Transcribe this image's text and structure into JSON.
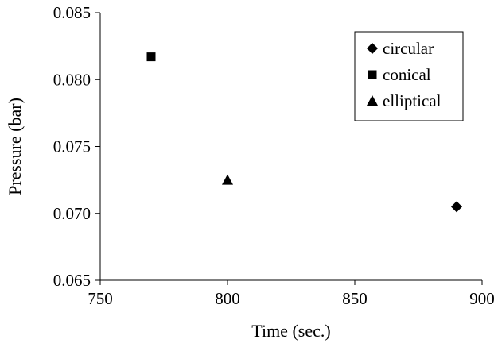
{
  "chart_data": {
    "type": "scatter",
    "title": "",
    "xlabel": "Time (sec.)",
    "ylabel": "Pressure (bar)",
    "xlim": [
      750,
      900
    ],
    "ylim": [
      0.065,
      0.085
    ],
    "x_ticks": [
      750,
      800,
      850,
      900
    ],
    "x_tick_labels": [
      "750",
      "800",
      "850",
      "900"
    ],
    "y_ticks": [
      0.065,
      0.07,
      0.075,
      0.08,
      0.085
    ],
    "y_tick_labels": [
      "0.065",
      "0.070",
      "0.075",
      "0.080",
      "0.085"
    ],
    "grid": false,
    "legend_position": "top-right",
    "series": [
      {
        "name": "circular",
        "marker": "diamond",
        "color": "#000000",
        "points": [
          {
            "x": 890,
            "y": 0.0705
          }
        ]
      },
      {
        "name": "conical",
        "marker": "square",
        "color": "#000000",
        "points": [
          {
            "x": 770,
            "y": 0.0817
          }
        ]
      },
      {
        "name": "elliptical",
        "marker": "triangle",
        "color": "#000000",
        "points": [
          {
            "x": 800,
            "y": 0.0725
          }
        ]
      }
    ]
  }
}
